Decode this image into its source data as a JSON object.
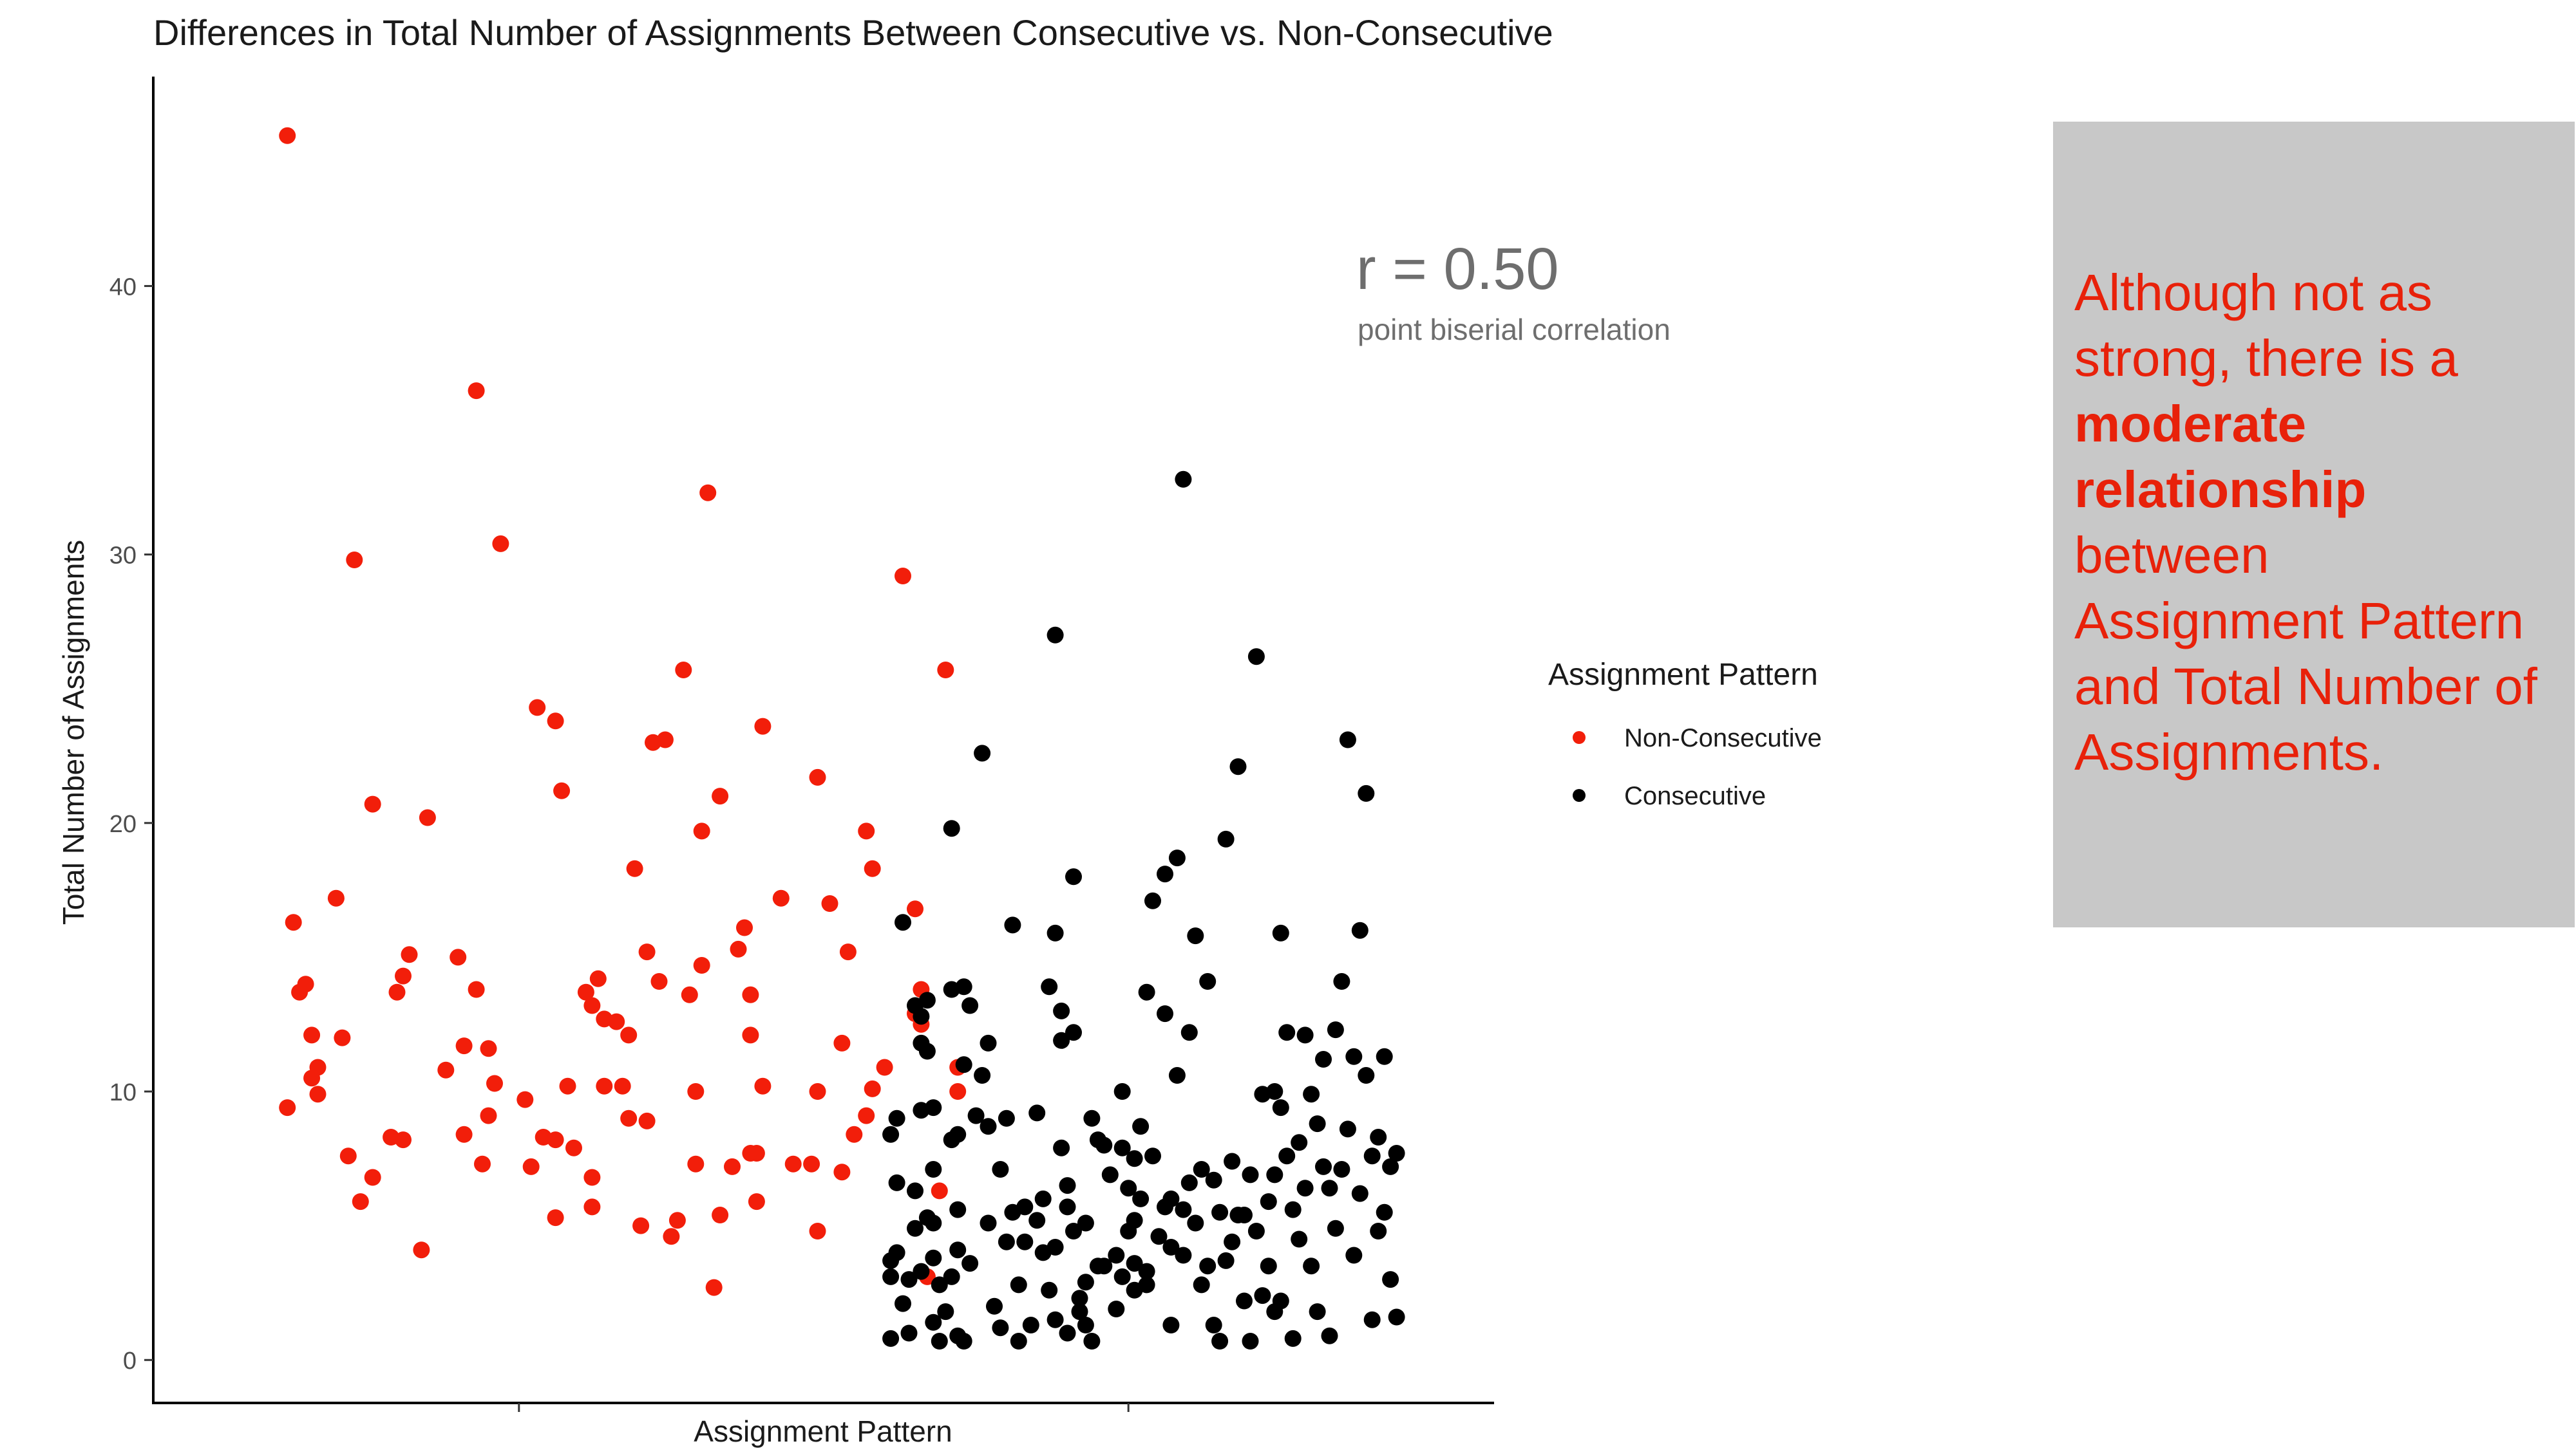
{
  "chart_data": {
    "type": "scatter",
    "title": "Differences in Total Number of Assignments Between Consecutive vs. Non-Consecutive",
    "xlabel": "Assignment Pattern",
    "ylabel": "Total Number of Assignments",
    "ylim": [
      -1.6,
      47.8
    ],
    "yticks": [
      0,
      10,
      20,
      30,
      40
    ],
    "grid": false,
    "jitter_plot": true,
    "x_categories": [
      "Non-Consecutive",
      "Consecutive"
    ],
    "legend": {
      "title": "Assignment Pattern",
      "position": "right",
      "items": [
        {
          "label": "Non-Consecutive",
          "color": "#f21e0a"
        },
        {
          "label": "Consecutive",
          "color": "#000000"
        }
      ]
    },
    "annotation": {
      "value_text": "r = 0.50",
      "subtitle": "point biserial correlation"
    },
    "series": [
      {
        "name": "Non-Consecutive",
        "color": "#f21e0a",
        "points": [
          [
            0.62,
            45.6
          ],
          [
            0.62,
            9.4
          ],
          [
            0.63,
            16.3
          ],
          [
            0.64,
            13.7
          ],
          [
            0.65,
            14
          ],
          [
            0.66,
            12.1
          ],
          [
            0.66,
            10.5
          ],
          [
            0.67,
            10.9
          ],
          [
            0.67,
            9.9
          ],
          [
            0.7,
            17.2
          ],
          [
            0.71,
            12
          ],
          [
            0.72,
            7.6
          ],
          [
            0.73,
            29.8
          ],
          [
            0.74,
            5.9
          ],
          [
            0.76,
            6.8
          ],
          [
            0.76,
            20.7
          ],
          [
            0.79,
            8.3
          ],
          [
            0.8,
            13.7
          ],
          [
            0.81,
            14.3
          ],
          [
            0.81,
            8.2
          ],
          [
            0.82,
            15.1
          ],
          [
            0.84,
            4.1
          ],
          [
            0.85,
            20.2
          ],
          [
            0.88,
            10.8
          ],
          [
            0.9,
            15
          ],
          [
            0.91,
            8.4
          ],
          [
            0.91,
            11.7
          ],
          [
            0.93,
            36.1
          ],
          [
            0.93,
            13.8
          ],
          [
            0.94,
            7.3
          ],
          [
            0.95,
            9.1
          ],
          [
            0.95,
            11.6
          ],
          [
            0.96,
            10.3
          ],
          [
            0.97,
            30.4
          ],
          [
            1.01,
            9.7
          ],
          [
            1.02,
            7.2
          ],
          [
            1.03,
            24.3
          ],
          [
            1.04,
            8.3
          ],
          [
            1.06,
            23.8
          ],
          [
            1.06,
            5.3
          ],
          [
            1.06,
            8.2
          ],
          [
            1.07,
            21.2
          ],
          [
            1.08,
            10.2
          ],
          [
            1.09,
            7.9
          ],
          [
            1.11,
            13.7
          ],
          [
            1.12,
            13.2
          ],
          [
            1.12,
            5.7
          ],
          [
            1.12,
            6.8
          ],
          [
            1.13,
            14.2
          ],
          [
            1.14,
            10.2
          ],
          [
            1.14,
            12.7
          ],
          [
            1.16,
            12.6
          ],
          [
            1.17,
            10.2
          ],
          [
            1.18,
            12.1
          ],
          [
            1.18,
            9
          ],
          [
            1.19,
            18.3
          ],
          [
            1.2,
            5
          ],
          [
            1.21,
            8.9
          ],
          [
            1.21,
            15.2
          ],
          [
            1.22,
            23
          ],
          [
            1.23,
            14.1
          ],
          [
            1.24,
            23.1
          ],
          [
            1.25,
            4.6
          ],
          [
            1.26,
            5.2
          ],
          [
            1.27,
            25.7
          ],
          [
            1.28,
            13.6
          ],
          [
            1.29,
            10
          ],
          [
            1.29,
            7.3
          ],
          [
            1.3,
            19.7
          ],
          [
            1.3,
            14.7
          ],
          [
            1.31,
            32.3
          ],
          [
            1.32,
            2.7
          ],
          [
            1.33,
            21
          ],
          [
            1.33,
            5.4
          ],
          [
            1.35,
            7.2
          ],
          [
            1.36,
            15.3
          ],
          [
            1.37,
            16.1
          ],
          [
            1.38,
            13.6
          ],
          [
            1.38,
            12.1
          ],
          [
            1.38,
            7.7
          ],
          [
            1.39,
            5.9
          ],
          [
            1.39,
            7.7
          ],
          [
            1.4,
            10.2
          ],
          [
            1.4,
            23.6
          ],
          [
            1.43,
            17.2
          ],
          [
            1.45,
            7.3
          ],
          [
            1.48,
            7.3
          ],
          [
            1.49,
            4.8
          ],
          [
            1.49,
            10
          ],
          [
            1.49,
            21.7
          ],
          [
            1.51,
            17
          ],
          [
            1.53,
            7
          ],
          [
            1.53,
            11.8
          ],
          [
            1.54,
            15.2
          ],
          [
            1.55,
            8.4
          ],
          [
            1.57,
            19.7
          ],
          [
            1.57,
            9.1
          ],
          [
            1.58,
            18.3
          ],
          [
            1.58,
            10.1
          ],
          [
            1.6,
            10.9
          ],
          [
            1.63,
            29.2
          ],
          [
            1.65,
            16.8
          ],
          [
            1.65,
            12.9
          ],
          [
            1.66,
            12.5
          ],
          [
            1.66,
            13.8
          ],
          [
            1.67,
            3.1
          ],
          [
            1.69,
            6.3
          ],
          [
            1.7,
            25.7
          ],
          [
            1.72,
            10.9
          ],
          [
            1.72,
            10
          ]
        ]
      },
      {
        "name": "Consecutive",
        "color": "#000000",
        "points": [
          [
            1.61,
            0.8
          ],
          [
            1.61,
            3.1
          ],
          [
            1.61,
            3.7
          ],
          [
            1.61,
            8.4
          ],
          [
            1.62,
            9
          ],
          [
            1.62,
            4
          ],
          [
            1.62,
            6.6
          ],
          [
            1.63,
            2.1
          ],
          [
            1.63,
            16.3
          ],
          [
            1.64,
            3
          ],
          [
            1.64,
            1
          ],
          [
            1.65,
            13.2
          ],
          [
            1.65,
            6.3
          ],
          [
            1.65,
            4.9
          ],
          [
            1.66,
            11.8
          ],
          [
            1.66,
            9.3
          ],
          [
            1.66,
            12.8
          ],
          [
            1.66,
            3.3
          ],
          [
            1.67,
            5.3
          ],
          [
            1.67,
            13.4
          ],
          [
            1.67,
            11.5
          ],
          [
            1.68,
            9.4
          ],
          [
            1.68,
            7.1
          ],
          [
            1.68,
            5.1
          ],
          [
            1.68,
            3.8
          ],
          [
            1.68,
            1.4
          ],
          [
            1.69,
            0.7
          ],
          [
            1.69,
            2.8
          ],
          [
            1.7,
            1.8
          ],
          [
            1.71,
            19.8
          ],
          [
            1.71,
            13.8
          ],
          [
            1.71,
            8.2
          ],
          [
            1.71,
            3.1
          ],
          [
            1.72,
            8.4
          ],
          [
            1.72,
            5.6
          ],
          [
            1.72,
            4.1
          ],
          [
            1.72,
            0.9
          ],
          [
            1.73,
            13.9
          ],
          [
            1.73,
            11
          ],
          [
            1.73,
            0.7
          ],
          [
            1.74,
            13.2
          ],
          [
            1.74,
            3.6
          ],
          [
            1.75,
            9.1
          ],
          [
            1.76,
            22.6
          ],
          [
            1.76,
            10.6
          ],
          [
            1.77,
            11.8
          ],
          [
            1.77,
            5.1
          ],
          [
            1.77,
            8.7
          ],
          [
            1.78,
            2
          ],
          [
            1.79,
            1.2
          ],
          [
            1.79,
            7.1
          ],
          [
            1.8,
            9
          ],
          [
            1.8,
            4.4
          ],
          [
            1.81,
            5.5
          ],
          [
            1.81,
            16.2
          ],
          [
            1.82,
            0.7
          ],
          [
            1.82,
            2.8
          ],
          [
            1.83,
            4.4
          ],
          [
            1.83,
            5.7
          ],
          [
            1.84,
            1.3
          ],
          [
            1.85,
            9.2
          ],
          [
            1.85,
            5.2
          ],
          [
            1.86,
            6
          ],
          [
            1.86,
            4
          ],
          [
            1.87,
            13.9
          ],
          [
            1.87,
            2.6
          ],
          [
            1.88,
            15.9
          ],
          [
            1.88,
            4.2
          ],
          [
            1.88,
            27
          ],
          [
            1.88,
            1.5
          ],
          [
            1.89,
            11.9
          ],
          [
            1.89,
            13
          ],
          [
            1.89,
            7.9
          ],
          [
            1.9,
            5.7
          ],
          [
            1.9,
            1
          ],
          [
            1.9,
            6.5
          ],
          [
            1.91,
            18
          ],
          [
            1.91,
            12.2
          ],
          [
            1.91,
            4.8
          ],
          [
            1.92,
            1.8
          ],
          [
            1.92,
            2.3
          ],
          [
            1.93,
            2.9
          ],
          [
            1.93,
            1.3
          ],
          [
            1.93,
            5.1
          ],
          [
            1.94,
            9
          ],
          [
            1.94,
            0.7
          ],
          [
            1.95,
            8.2
          ],
          [
            1.95,
            3.5
          ],
          [
            1.96,
            8
          ],
          [
            1.96,
            3.5
          ],
          [
            1.97,
            6.9
          ],
          [
            1.98,
            1.9
          ],
          [
            1.98,
            3.9
          ],
          [
            1.99,
            10
          ],
          [
            1.99,
            7.9
          ],
          [
            1.99,
            3.1
          ],
          [
            2,
            6.4
          ],
          [
            2,
            4.8
          ],
          [
            2.01,
            2.6
          ],
          [
            2.01,
            5.2
          ],
          [
            2.01,
            7.5
          ],
          [
            2.01,
            3.6
          ],
          [
            2.02,
            6
          ],
          [
            2.02,
            8.7
          ],
          [
            2.03,
            13.7
          ],
          [
            2.03,
            3.3
          ],
          [
            2.03,
            2.8
          ],
          [
            2.04,
            17.1
          ],
          [
            2.04,
            7.6
          ],
          [
            2.05,
            4.6
          ],
          [
            2.06,
            18.1
          ],
          [
            2.06,
            5.7
          ],
          [
            2.06,
            12.9
          ],
          [
            2.07,
            6
          ],
          [
            2.07,
            4.2
          ],
          [
            2.07,
            1.3
          ],
          [
            2.08,
            10.6
          ],
          [
            2.08,
            18.7
          ],
          [
            2.09,
            32.8
          ],
          [
            2.09,
            5.6
          ],
          [
            2.09,
            3.9
          ],
          [
            2.1,
            12.2
          ],
          [
            2.1,
            6.6
          ],
          [
            2.11,
            15.8
          ],
          [
            2.11,
            5.1
          ],
          [
            2.12,
            7.1
          ],
          [
            2.12,
            2.8
          ],
          [
            2.13,
            14.1
          ],
          [
            2.13,
            3.5
          ],
          [
            2.14,
            6.7
          ],
          [
            2.14,
            1.3
          ],
          [
            2.15,
            0.7
          ],
          [
            2.15,
            5.5
          ],
          [
            2.16,
            19.4
          ],
          [
            2.16,
            3.7
          ],
          [
            2.17,
            7.4
          ],
          [
            2.17,
            4.4
          ],
          [
            2.18,
            22.1
          ],
          [
            2.18,
            5.4
          ],
          [
            2.19,
            5.4
          ],
          [
            2.19,
            2.2
          ],
          [
            2.2,
            6.9
          ],
          [
            2.2,
            0.7
          ],
          [
            2.21,
            26.2
          ],
          [
            2.21,
            4.8
          ],
          [
            2.22,
            9.9
          ],
          [
            2.22,
            2.4
          ],
          [
            2.23,
            5.9
          ],
          [
            2.23,
            3.5
          ],
          [
            2.24,
            10
          ],
          [
            2.24,
            6.9
          ],
          [
            2.24,
            1.8
          ],
          [
            2.25,
            15.9
          ],
          [
            2.25,
            9.4
          ],
          [
            2.25,
            2.2
          ],
          [
            2.26,
            12.2
          ],
          [
            2.26,
            7.6
          ],
          [
            2.27,
            5.6
          ],
          [
            2.27,
            0.8
          ],
          [
            2.28,
            8.1
          ],
          [
            2.28,
            4.5
          ],
          [
            2.29,
            12.1
          ],
          [
            2.29,
            6.4
          ],
          [
            2.3,
            9.9
          ],
          [
            2.3,
            3.5
          ],
          [
            2.31,
            8.8
          ],
          [
            2.31,
            1.8
          ],
          [
            2.32,
            11.2
          ],
          [
            2.32,
            7.2
          ],
          [
            2.33,
            6.4
          ],
          [
            2.33,
            0.9
          ],
          [
            2.34,
            12.3
          ],
          [
            2.34,
            4.9
          ],
          [
            2.35,
            14.1
          ],
          [
            2.35,
            7.1
          ],
          [
            2.36,
            23.1
          ],
          [
            2.36,
            8.6
          ],
          [
            2.37,
            11.3
          ],
          [
            2.37,
            3.9
          ],
          [
            2.38,
            16
          ],
          [
            2.38,
            6.2
          ],
          [
            2.39,
            21.1
          ],
          [
            2.39,
            10.6
          ],
          [
            2.4,
            7.6
          ],
          [
            2.4,
            1.5
          ],
          [
            2.41,
            8.3
          ],
          [
            2.41,
            4.8
          ],
          [
            2.42,
            11.3
          ],
          [
            2.42,
            5.5
          ],
          [
            2.43,
            7.2
          ],
          [
            2.43,
            3
          ],
          [
            2.44,
            7.7
          ],
          [
            2.44,
            1.6
          ]
        ]
      }
    ]
  },
  "callout": {
    "line1": "Although not as strong, there is a",
    "bold": "moderate relationship",
    "line2": "between Assignment Pattern and Total Number of Assignments."
  }
}
